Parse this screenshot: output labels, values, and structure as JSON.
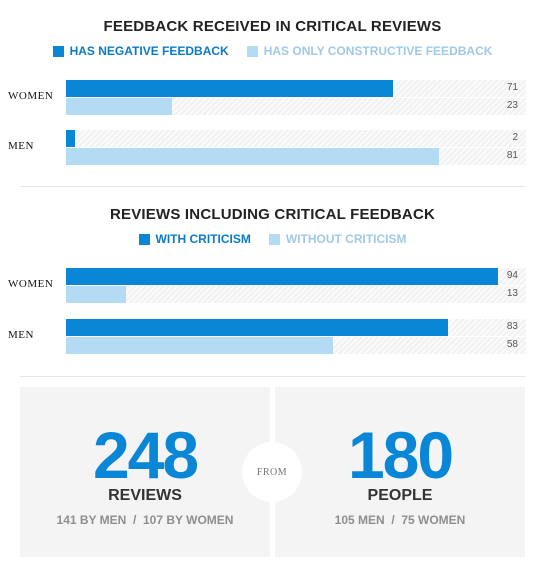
{
  "colors": {
    "primary": "#0a86d6",
    "secondary": "#b3dcf4",
    "primary_text": "#0a7bc6",
    "secondary_text": "#9fc9e6"
  },
  "chart_data": [
    {
      "type": "bar",
      "orientation": "horizontal",
      "title": "FEEDBACK RECEIVED IN CRITICAL REVIEWS",
      "categories": [
        "WOMEN",
        "MEN"
      ],
      "series": [
        {
          "name": "HAS NEGATIVE FEEDBACK",
          "values": [
            71,
            2
          ]
        },
        {
          "name": "HAS ONLY CONSTRUCTIVE FEEDBACK",
          "values": [
            23,
            81
          ]
        }
      ],
      "xlim": [
        0,
        100
      ],
      "legend": "top-center",
      "grid": false
    },
    {
      "type": "bar",
      "orientation": "horizontal",
      "title": "REVIEWS INCLUDING CRITICAL FEEDBACK",
      "categories": [
        "WOMEN",
        "MEN"
      ],
      "series": [
        {
          "name": "WITH CRITICISM",
          "values": [
            94,
            83
          ]
        },
        {
          "name": "WITHOUT CRITICISM",
          "values": [
            13,
            58
          ]
        }
      ],
      "xlim": [
        0,
        100
      ],
      "legend": "top-center",
      "grid": false
    }
  ],
  "stats": {
    "reviews": {
      "number": "248",
      "label": "REVIEWS",
      "sub": "141 BY MEN  /  107 BY WOMEN"
    },
    "from": "FROM",
    "people": {
      "number": "180",
      "label": "PEOPLE",
      "sub": "105 MEN  /  75 WOMEN"
    }
  }
}
